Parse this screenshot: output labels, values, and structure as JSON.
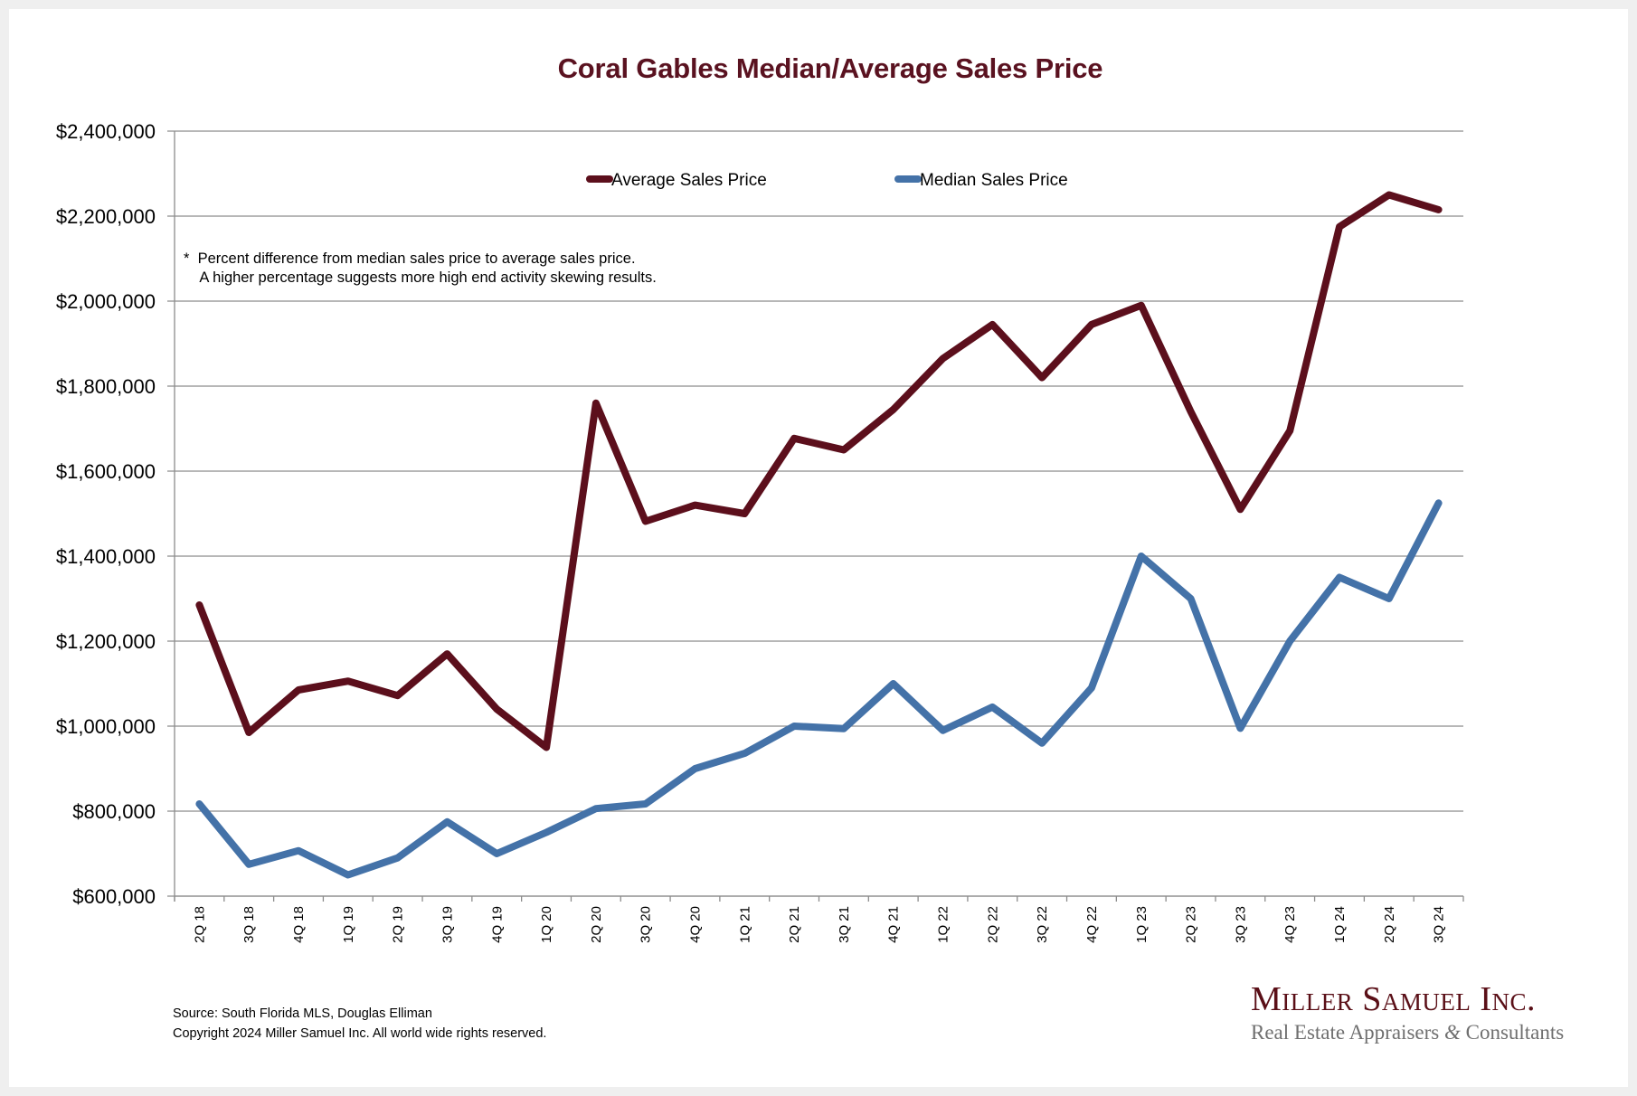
{
  "chart_data": {
    "type": "line",
    "title": "Coral Gables Median/Average Sales Price",
    "xlabel": "",
    "ylabel": "",
    "ylim": [
      600000,
      2400000
    ],
    "ytick_step": 200000,
    "yticks": [
      "$600,000",
      "$800,000",
      "$1,000,000",
      "$1,200,000",
      "$1,400,000",
      "$1,600,000",
      "$1,800,000",
      "$2,000,000",
      "$2,200,000",
      "$2,400,000"
    ],
    "grid": "horizontal",
    "legend_position": "top-center",
    "categories": [
      "2Q 18",
      "3Q 18",
      "4Q 18",
      "1Q 19",
      "2Q 19",
      "3Q 19",
      "4Q 19",
      "1Q 20",
      "2Q 20",
      "3Q 20",
      "4Q 20",
      "1Q 21",
      "2Q 21",
      "3Q 21",
      "4Q 21",
      "1Q 22",
      "2Q 22",
      "3Q 22",
      "4Q 22",
      "1Q 23",
      "2Q 23",
      "3Q 23",
      "4Q 23",
      "1Q 24",
      "2Q 24",
      "3Q 24"
    ],
    "series": [
      {
        "name": "Average Sales Price",
        "color": "#5c0f1c",
        "values": [
          1285000,
          985000,
          1085000,
          1106000,
          1072000,
          1170000,
          1040000,
          950000,
          1760000,
          1482000,
          1520000,
          1500000,
          1677000,
          1650000,
          1745000,
          1865000,
          1945000,
          1820000,
          1945000,
          1990000,
          1740000,
          1510000,
          1695000,
          2175000,
          2250000,
          2215000
        ]
      },
      {
        "name": "Median Sales Price",
        "color": "#4472a8",
        "values": [
          817000,
          675000,
          707000,
          650000,
          690000,
          775000,
          700000,
          750000,
          806000,
          817000,
          900000,
          936000,
          1000000,
          994000,
          1100000,
          990000,
          1045000,
          960000,
          1090000,
          1400000,
          1300000,
          995000,
          1200000,
          1350000,
          1300000,
          1525000
        ]
      }
    ],
    "annotations": [
      "*  Percent difference from median sales price to average sales price.",
      "    A higher percentage suggests more high end activity skewing results."
    ]
  },
  "footer": {
    "source": "Source: South Florida MLS, Douglas Elliman",
    "copyright": "Copyright 2024 Miller Samuel Inc.  All world wide rights reserved."
  },
  "logo": {
    "name": "Miller Samuel Inc.",
    "tagline_part1": "Real Estate Appraisers ",
    "tagline_amp": "&",
    "tagline_part2": " Consultants"
  }
}
